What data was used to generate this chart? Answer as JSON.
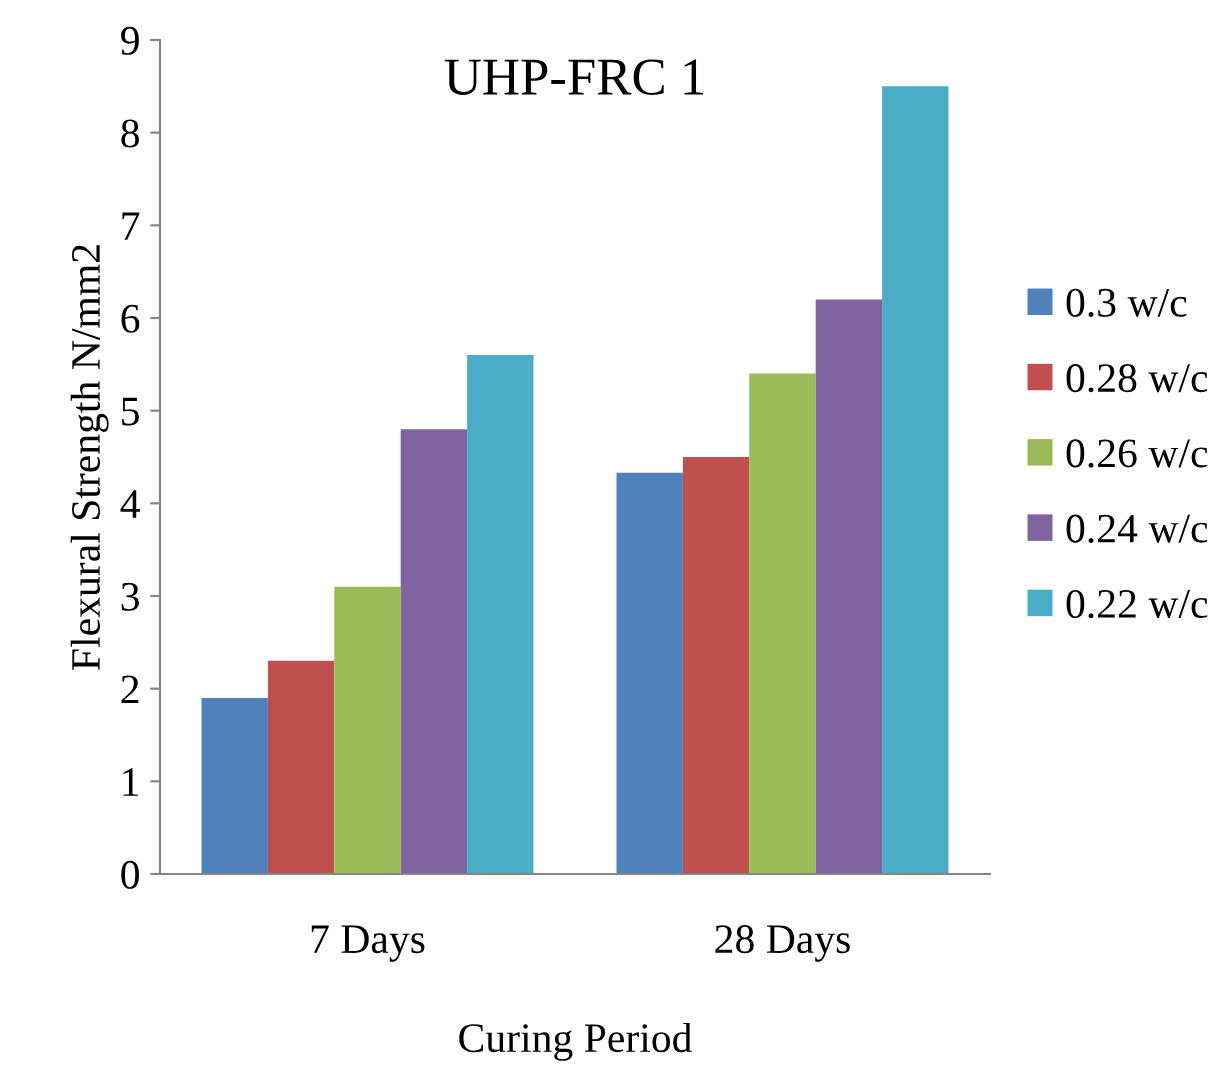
{
  "chart_data": {
    "type": "bar",
    "title": "UHP-FRC 1",
    "xlabel": "Curing Period",
    "ylabel": "Flexural Strength N/mm2",
    "categories": [
      "7 Days",
      "28 Days"
    ],
    "series": [
      {
        "name": "0.3 w/c",
        "color": "#4f81bd",
        "values": [
          1.9,
          4.33
        ]
      },
      {
        "name": "0.28 w/c",
        "color": "#c0504d",
        "values": [
          2.3,
          4.5
        ]
      },
      {
        "name": "0.26 w/c",
        "color": "#9bbb59",
        "values": [
          3.1,
          5.4
        ]
      },
      {
        "name": "0.24 w/c",
        "color": "#8064a2",
        "values": [
          4.8,
          6.2
        ]
      },
      {
        "name": "0.22 w/c",
        "color": "#4bacc6",
        "values": [
          5.6,
          8.5
        ]
      }
    ],
    "ylim": [
      0,
      9
    ],
    "yticks": [
      0,
      1,
      2,
      3,
      4,
      5,
      6,
      7,
      8,
      9
    ],
    "grid": false,
    "legend": "right"
  }
}
